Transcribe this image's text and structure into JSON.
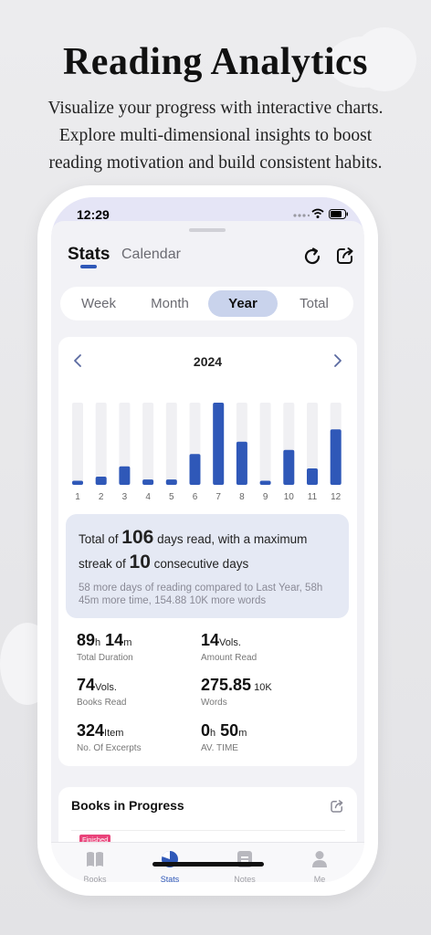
{
  "hero": {
    "title": "Reading Analytics",
    "subtitle_lines": [
      "Visualize your progress with interactive charts.",
      "Explore multi-dimensional insights to boost",
      "reading motivation and build consistent habits."
    ]
  },
  "status_bar": {
    "time": "12:29"
  },
  "header": {
    "tabs": [
      {
        "label": "Stats",
        "active": true
      },
      {
        "label": "Calendar",
        "active": false
      }
    ],
    "icons": [
      "refresh-icon",
      "share-icon"
    ]
  },
  "segment": {
    "items": [
      "Week",
      "Month",
      "Year",
      "Total"
    ],
    "selected": "Year"
  },
  "chart_data": {
    "type": "bar",
    "title": "2024",
    "categories": [
      "1",
      "2",
      "3",
      "4",
      "5",
      "6",
      "7",
      "8",
      "9",
      "10",
      "11",
      "12"
    ],
    "values": [
      1,
      2,
      4.5,
      1.3,
      1.3,
      7.5,
      20,
      10.5,
      1,
      8.5,
      4,
      13.5
    ],
    "max_track": 20,
    "xlabel": "",
    "ylabel": "",
    "grid": false,
    "colors": {
      "bar": "#2f58b8",
      "track": "#f0f0f3"
    }
  },
  "summary": {
    "prefix1": "Total of ",
    "days": "106",
    "mid1": " days read, with a maximum",
    "prefix2": "streak of ",
    "streak": "10",
    "suffix2": " consecutive days",
    "note": "58 more days of reading compared to Last Year, 58h 45m more time, 154.88 10K more words"
  },
  "stats": [
    {
      "value_parts": [
        [
          "89",
          "h"
        ],
        [
          "14",
          "m"
        ]
      ],
      "label": "Total Duration"
    },
    {
      "value_parts": [
        [
          "14",
          "Vols."
        ]
      ],
      "label": "Amount Read"
    },
    {
      "value_parts": [
        [
          "74",
          "Vols."
        ]
      ],
      "label": "Books Read"
    },
    {
      "value_parts": [
        [
          "275.85",
          " 10K"
        ]
      ],
      "label": "Words"
    },
    {
      "value_parts": [
        [
          "324",
          "Item"
        ]
      ],
      "label": "No. Of Excerpts"
    },
    {
      "value_parts": [
        [
          "0",
          "h"
        ],
        [
          "50",
          "m"
        ]
      ],
      "label": "AV. TIME"
    }
  ],
  "books_in_progress": {
    "title": "Books in Progress",
    "badge": "Finished"
  },
  "bottom_nav": [
    {
      "label": "Books",
      "icon": "book-icon",
      "active": false
    },
    {
      "label": "Stats",
      "icon": "pie-chart-icon",
      "active": true
    },
    {
      "label": "Notes",
      "icon": "notes-icon",
      "active": false
    },
    {
      "label": "Me",
      "icon": "person-icon",
      "active": false
    }
  ],
  "colors": {
    "accent": "#2f58b8",
    "segment_active": "#c9d3ec",
    "summary_bg": "#e5e9f4",
    "badge": "#e9437a"
  }
}
